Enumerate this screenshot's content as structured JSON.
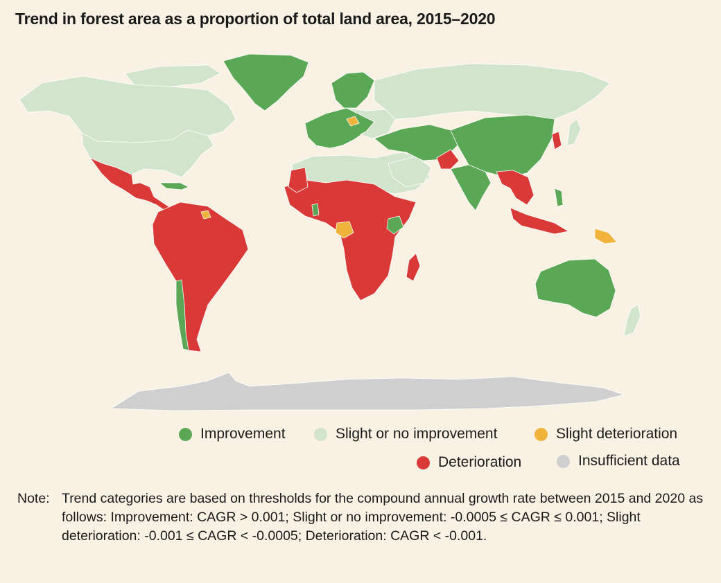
{
  "title": "Trend in forest area as a proportion of total land area, 2015–2020",
  "legend": [
    {
      "key": "improvement",
      "label": "Improvement",
      "color": "#5aa755"
    },
    {
      "key": "slight_improvement",
      "label": "Slight or no improvement",
      "color": "#d3e4cc"
    },
    {
      "key": "slight_deterioration",
      "label": "Slight deterioration",
      "color": "#f0b43c"
    },
    {
      "key": "deterioration",
      "label": "Deterioration",
      "color": "#d93a37"
    },
    {
      "key": "insufficient",
      "label": "Insufficient data",
      "color": "#cfcfcf"
    }
  ],
  "note": {
    "label": "Note:",
    "text": "Trend categories are based on thresholds for the compound annual growth rate between 2015 and 2020 as follows: Improvement: CAGR > 0.001; Slight or no improvement: -0.0005 ≤ CAGR ≤ 0.001; Slight deterioration: -0.001 ≤ CAGR < -0.0005; Deterioration: CAGR < -0.001."
  },
  "colors": {
    "background": "#f9f1e4",
    "border": "#ffffff"
  }
}
